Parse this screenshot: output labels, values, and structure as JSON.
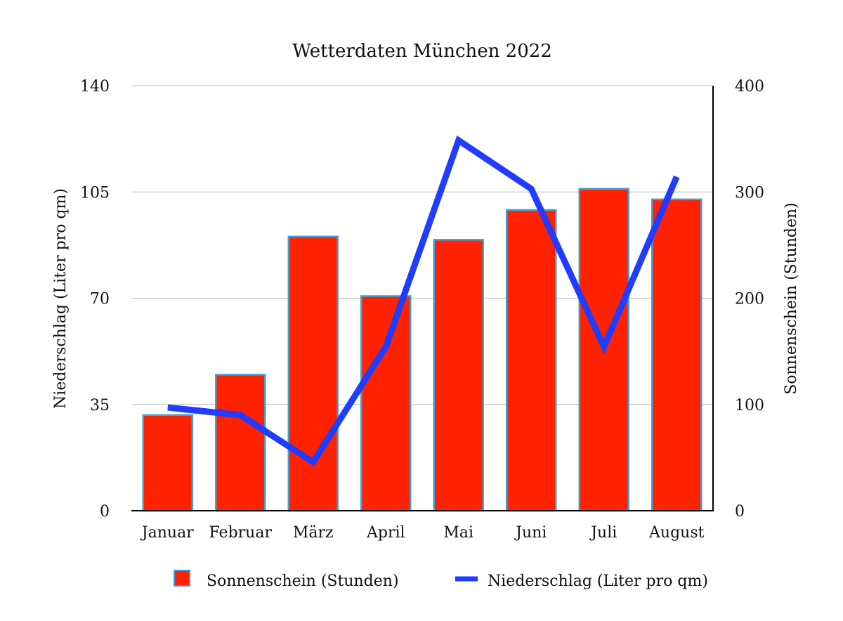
{
  "chart_data": {
    "type": "bar",
    "title": "Wetterdaten München 2022",
    "categories": [
      "Januar",
      "Februar",
      "März",
      "April",
      "Mai",
      "Juni",
      "Juli",
      "August"
    ],
    "series": [
      {
        "name": "Sonnenschein (Stunden)",
        "type": "bar",
        "axis": "right",
        "color": "#ff2200",
        "border_color": "#3da0d6",
        "values": [
          90,
          128,
          258,
          202,
          255,
          283,
          303,
          293
        ]
      },
      {
        "name": "Niederschlag (Liter pro qm)",
        "type": "line",
        "axis": "left",
        "color": "#1f3cff",
        "values": [
          34,
          31.5,
          16,
          54,
          122,
          106,
          54,
          110
        ]
      }
    ],
    "y_left": {
      "label": "Niederschlag (Liter pro qm)",
      "ylim": [
        0,
        140
      ],
      "ticks": [
        "0",
        "35",
        "70",
        "105",
        "140"
      ]
    },
    "y_right": {
      "label": "Sonnenschein (Stunden)",
      "ylim": [
        0,
        400
      ],
      "ticks": [
        "0",
        "100",
        "200",
        "300",
        "400"
      ]
    },
    "grid": true,
    "legend": "bottom"
  }
}
